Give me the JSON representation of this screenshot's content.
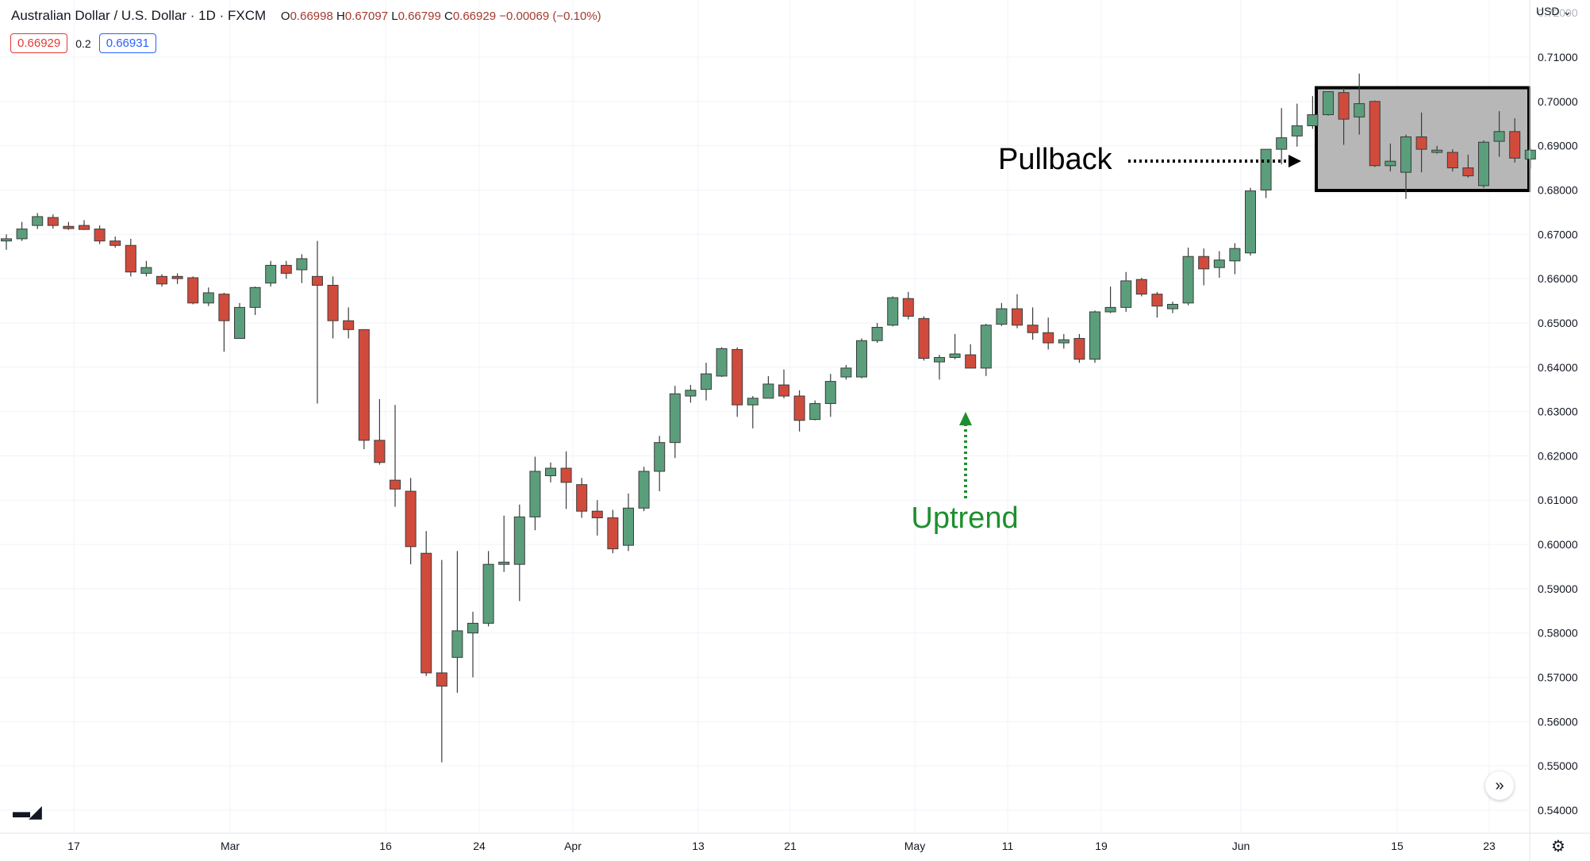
{
  "header": {
    "symbol": "Australian Dollar / U.S. Dollar · 1D · FXCM",
    "open": "0.66998",
    "high": "0.67097",
    "low": "0.66799",
    "close": "0.66929",
    "change": "−0.00069 (−0.10%)",
    "bid": "0.66929",
    "spread": "0.2",
    "ask": "0.66931",
    "currency_label": "USD"
  },
  "colors": {
    "up": "#5b9e7c",
    "down": "#d14b3c",
    "annotation_green": "#1e8f2e",
    "pullback_box": "#000000"
  },
  "icons": {
    "logo": "tradingview-logo-icon",
    "scroll": "scroll-right-icon",
    "settings": "gear-icon"
  },
  "chart_data": {
    "type": "candlestick",
    "y_axis": {
      "range": [
        0.5348,
        0.7229
      ],
      "ticks": [
        "0.71000",
        "0.70000",
        "0.69000",
        "0.68000",
        "0.67000",
        "0.66000",
        "0.65000",
        "0.64000",
        "0.63000",
        "0.62000",
        "0.61000",
        "0.60000",
        "0.59000",
        "0.58000",
        "0.57000",
        "0.56000",
        "0.55000",
        "0.54000"
      ],
      "top_partial_label": "0.72000"
    },
    "x_axis_labels": [
      "17",
      "Mar",
      "16",
      "24",
      "Apr",
      "13",
      "21",
      "May",
      "11",
      "19",
      "Jun",
      "15",
      "23"
    ],
    "candles": [
      {
        "o": 0.6685,
        "h": 0.67,
        "l": 0.6665,
        "c": 0.669
      },
      {
        "o": 0.669,
        "h": 0.6728,
        "l": 0.6685,
        "c": 0.6712
      },
      {
        "o": 0.672,
        "h": 0.6748,
        "l": 0.6712,
        "c": 0.674
      },
      {
        "o": 0.6738,
        "h": 0.6745,
        "l": 0.6713,
        "c": 0.672
      },
      {
        "o": 0.6718,
        "h": 0.6728,
        "l": 0.671,
        "c": 0.6713
      },
      {
        "o": 0.672,
        "h": 0.6732,
        "l": 0.671,
        "c": 0.6711
      },
      {
        "o": 0.6712,
        "h": 0.672,
        "l": 0.6678,
        "c": 0.6685
      },
      {
        "o": 0.6685,
        "h": 0.6695,
        "l": 0.667,
        "c": 0.6675
      },
      {
        "o": 0.6675,
        "h": 0.669,
        "l": 0.6605,
        "c": 0.6615
      },
      {
        "o": 0.6612,
        "h": 0.664,
        "l": 0.6605,
        "c": 0.6625
      },
      {
        "o": 0.6605,
        "h": 0.661,
        "l": 0.6582,
        "c": 0.6588
      },
      {
        "o": 0.6605,
        "h": 0.6612,
        "l": 0.6588,
        "c": 0.66
      },
      {
        "o": 0.6602,
        "h": 0.6605,
        "l": 0.6542,
        "c": 0.6545
      },
      {
        "o": 0.6545,
        "h": 0.658,
        "l": 0.6538,
        "c": 0.6568
      },
      {
        "o": 0.6565,
        "h": 0.6568,
        "l": 0.6435,
        "c": 0.6505
      },
      {
        "o": 0.6465,
        "h": 0.6545,
        "l": 0.6465,
        "c": 0.6535
      },
      {
        "o": 0.6535,
        "h": 0.6582,
        "l": 0.6518,
        "c": 0.658
      },
      {
        "o": 0.659,
        "h": 0.664,
        "l": 0.6582,
        "c": 0.663
      },
      {
        "o": 0.663,
        "h": 0.664,
        "l": 0.66,
        "c": 0.6612
      },
      {
        "o": 0.662,
        "h": 0.6655,
        "l": 0.659,
        "c": 0.6645
      },
      {
        "o": 0.6605,
        "h": 0.6685,
        "l": 0.6318,
        "c": 0.6585
      },
      {
        "o": 0.6585,
        "h": 0.6605,
        "l": 0.6465,
        "c": 0.6505
      },
      {
        "o": 0.6505,
        "h": 0.6535,
        "l": 0.6465,
        "c": 0.6485
      },
      {
        "o": 0.6485,
        "h": 0.6485,
        "l": 0.6215,
        "c": 0.6235
      },
      {
        "o": 0.6235,
        "h": 0.6328,
        "l": 0.618,
        "c": 0.6185
      },
      {
        "o": 0.6145,
        "h": 0.6315,
        "l": 0.6085,
        "c": 0.6125
      },
      {
        "o": 0.612,
        "h": 0.615,
        "l": 0.5955,
        "c": 0.5995
      },
      {
        "o": 0.598,
        "h": 0.603,
        "l": 0.5703,
        "c": 0.571
      },
      {
        "o": 0.571,
        "h": 0.5965,
        "l": 0.5508,
        "c": 0.568
      },
      {
        "o": 0.5745,
        "h": 0.5985,
        "l": 0.5665,
        "c": 0.5805
      },
      {
        "o": 0.58,
        "h": 0.5848,
        "l": 0.57,
        "c": 0.5822
      },
      {
        "o": 0.5822,
        "h": 0.5985,
        "l": 0.5815,
        "c": 0.5955
      },
      {
        "o": 0.5955,
        "h": 0.6065,
        "l": 0.5938,
        "c": 0.596
      },
      {
        "o": 0.5955,
        "h": 0.609,
        "l": 0.5872,
        "c": 0.6062
      },
      {
        "o": 0.6062,
        "h": 0.6198,
        "l": 0.6032,
        "c": 0.6165
      },
      {
        "o": 0.6155,
        "h": 0.6185,
        "l": 0.614,
        "c": 0.6172
      },
      {
        "o": 0.6172,
        "h": 0.621,
        "l": 0.608,
        "c": 0.614
      },
      {
        "o": 0.6135,
        "h": 0.615,
        "l": 0.606,
        "c": 0.6075
      },
      {
        "o": 0.6075,
        "h": 0.61,
        "l": 0.602,
        "c": 0.606
      },
      {
        "o": 0.606,
        "h": 0.6078,
        "l": 0.598,
        "c": 0.599
      },
      {
        "o": 0.5998,
        "h": 0.6115,
        "l": 0.5985,
        "c": 0.6082
      },
      {
        "o": 0.6082,
        "h": 0.6175,
        "l": 0.6075,
        "c": 0.6165
      },
      {
        "o": 0.6165,
        "h": 0.6245,
        "l": 0.612,
        "c": 0.623
      },
      {
        "o": 0.623,
        "h": 0.6358,
        "l": 0.6195,
        "c": 0.634
      },
      {
        "o": 0.6335,
        "h": 0.636,
        "l": 0.632,
        "c": 0.6348
      },
      {
        "o": 0.635,
        "h": 0.641,
        "l": 0.6325,
        "c": 0.6385
      },
      {
        "o": 0.638,
        "h": 0.6445,
        "l": 0.6378,
        "c": 0.6442
      },
      {
        "o": 0.644,
        "h": 0.6445,
        "l": 0.6288,
        "c": 0.6315
      },
      {
        "o": 0.6315,
        "h": 0.6335,
        "l": 0.6262,
        "c": 0.633
      },
      {
        "o": 0.633,
        "h": 0.638,
        "l": 0.633,
        "c": 0.6362
      },
      {
        "o": 0.636,
        "h": 0.6395,
        "l": 0.633,
        "c": 0.6335
      },
      {
        "o": 0.6335,
        "h": 0.6348,
        "l": 0.6255,
        "c": 0.628
      },
      {
        "o": 0.6282,
        "h": 0.6325,
        "l": 0.628,
        "c": 0.6318
      },
      {
        "o": 0.6318,
        "h": 0.6385,
        "l": 0.6288,
        "c": 0.6368
      },
      {
        "o": 0.6378,
        "h": 0.6405,
        "l": 0.6372,
        "c": 0.6398
      },
      {
        "o": 0.6378,
        "h": 0.6465,
        "l": 0.6375,
        "c": 0.646
      },
      {
        "o": 0.646,
        "h": 0.65,
        "l": 0.6455,
        "c": 0.649
      },
      {
        "o": 0.6495,
        "h": 0.656,
        "l": 0.6492,
        "c": 0.6557
      },
      {
        "o": 0.6555,
        "h": 0.657,
        "l": 0.6508,
        "c": 0.6515
      },
      {
        "o": 0.651,
        "h": 0.6515,
        "l": 0.6415,
        "c": 0.642
      },
      {
        "o": 0.6412,
        "h": 0.6428,
        "l": 0.6372,
        "c": 0.6422
      },
      {
        "o": 0.6422,
        "h": 0.6475,
        "l": 0.6418,
        "c": 0.643
      },
      {
        "o": 0.6428,
        "h": 0.6452,
        "l": 0.6398,
        "c": 0.6398
      },
      {
        "o": 0.6398,
        "h": 0.6498,
        "l": 0.638,
        "c": 0.6495
      },
      {
        "o": 0.6497,
        "h": 0.6545,
        "l": 0.6493,
        "c": 0.6532
      },
      {
        "o": 0.6532,
        "h": 0.6565,
        "l": 0.6488,
        "c": 0.6495
      },
      {
        "o": 0.6495,
        "h": 0.6535,
        "l": 0.6462,
        "c": 0.6478
      },
      {
        "o": 0.6478,
        "h": 0.6512,
        "l": 0.644,
        "c": 0.6455
      },
      {
        "o": 0.6455,
        "h": 0.6475,
        "l": 0.6442,
        "c": 0.6462
      },
      {
        "o": 0.6465,
        "h": 0.6475,
        "l": 0.641,
        "c": 0.6418
      },
      {
        "o": 0.6418,
        "h": 0.6528,
        "l": 0.641,
        "c": 0.6525
      },
      {
        "o": 0.6525,
        "h": 0.6582,
        "l": 0.6522,
        "c": 0.6535
      },
      {
        "o": 0.6535,
        "h": 0.6615,
        "l": 0.6525,
        "c": 0.6595
      },
      {
        "o": 0.6598,
        "h": 0.6602,
        "l": 0.656,
        "c": 0.6565
      },
      {
        "o": 0.6565,
        "h": 0.657,
        "l": 0.6512,
        "c": 0.6538
      },
      {
        "o": 0.6532,
        "h": 0.6548,
        "l": 0.6522,
        "c": 0.6542
      },
      {
        "o": 0.6545,
        "h": 0.667,
        "l": 0.654,
        "c": 0.665
      },
      {
        "o": 0.665,
        "h": 0.6668,
        "l": 0.6585,
        "c": 0.6622
      },
      {
        "o": 0.6625,
        "h": 0.6662,
        "l": 0.6602,
        "c": 0.6642
      },
      {
        "o": 0.664,
        "h": 0.668,
        "l": 0.661,
        "c": 0.6668
      },
      {
        "o": 0.6658,
        "h": 0.6805,
        "l": 0.6652,
        "c": 0.6798
      },
      {
        "o": 0.68,
        "h": 0.6892,
        "l": 0.6782,
        "c": 0.6892
      },
      {
        "o": 0.6892,
        "h": 0.6985,
        "l": 0.6858,
        "c": 0.6918
      },
      {
        "o": 0.6922,
        "h": 0.6995,
        "l": 0.6898,
        "c": 0.6945
      },
      {
        "o": 0.6945,
        "h": 0.7012,
        "l": 0.6938,
        "c": 0.697
      },
      {
        "o": 0.697,
        "h": 0.7022,
        "l": 0.6968,
        "c": 0.7022
      },
      {
        "o": 0.702,
        "h": 0.703,
        "l": 0.6902,
        "c": 0.696
      },
      {
        "o": 0.6965,
        "h": 0.7063,
        "l": 0.6925,
        "c": 0.6995
      },
      {
        "o": 0.7,
        "h": 0.7002,
        "l": 0.6852,
        "c": 0.6855
      },
      {
        "o": 0.6855,
        "h": 0.6905,
        "l": 0.6842,
        "c": 0.6865
      },
      {
        "o": 0.684,
        "h": 0.6925,
        "l": 0.678,
        "c": 0.692
      },
      {
        "o": 0.692,
        "h": 0.6975,
        "l": 0.684,
        "c": 0.6892
      },
      {
        "o": 0.6885,
        "h": 0.69,
        "l": 0.6882,
        "c": 0.689
      },
      {
        "o": 0.6885,
        "h": 0.6892,
        "l": 0.6842,
        "c": 0.685
      },
      {
        "o": 0.685,
        "h": 0.688,
        "l": 0.6828,
        "c": 0.6832
      },
      {
        "o": 0.681,
        "h": 0.6912,
        "l": 0.6805,
        "c": 0.6908
      },
      {
        "o": 0.691,
        "h": 0.6978,
        "l": 0.6875,
        "c": 0.6932
      },
      {
        "o": 0.6932,
        "h": 0.6962,
        "l": 0.6862,
        "c": 0.6872
      },
      {
        "o": 0.687,
        "h": 0.6895,
        "l": 0.6848,
        "c": 0.689
      }
    ],
    "annotations": [
      {
        "text": "Pullback",
        "kind": "arrow-right-into-box",
        "color": "#000000"
      },
      {
        "text": "Uptrend",
        "kind": "arrow-up",
        "color": "#1e8f2e"
      }
    ],
    "pullback_box": {
      "y_high": 0.7031,
      "y_low": 0.6799
    },
    "grid": true
  }
}
